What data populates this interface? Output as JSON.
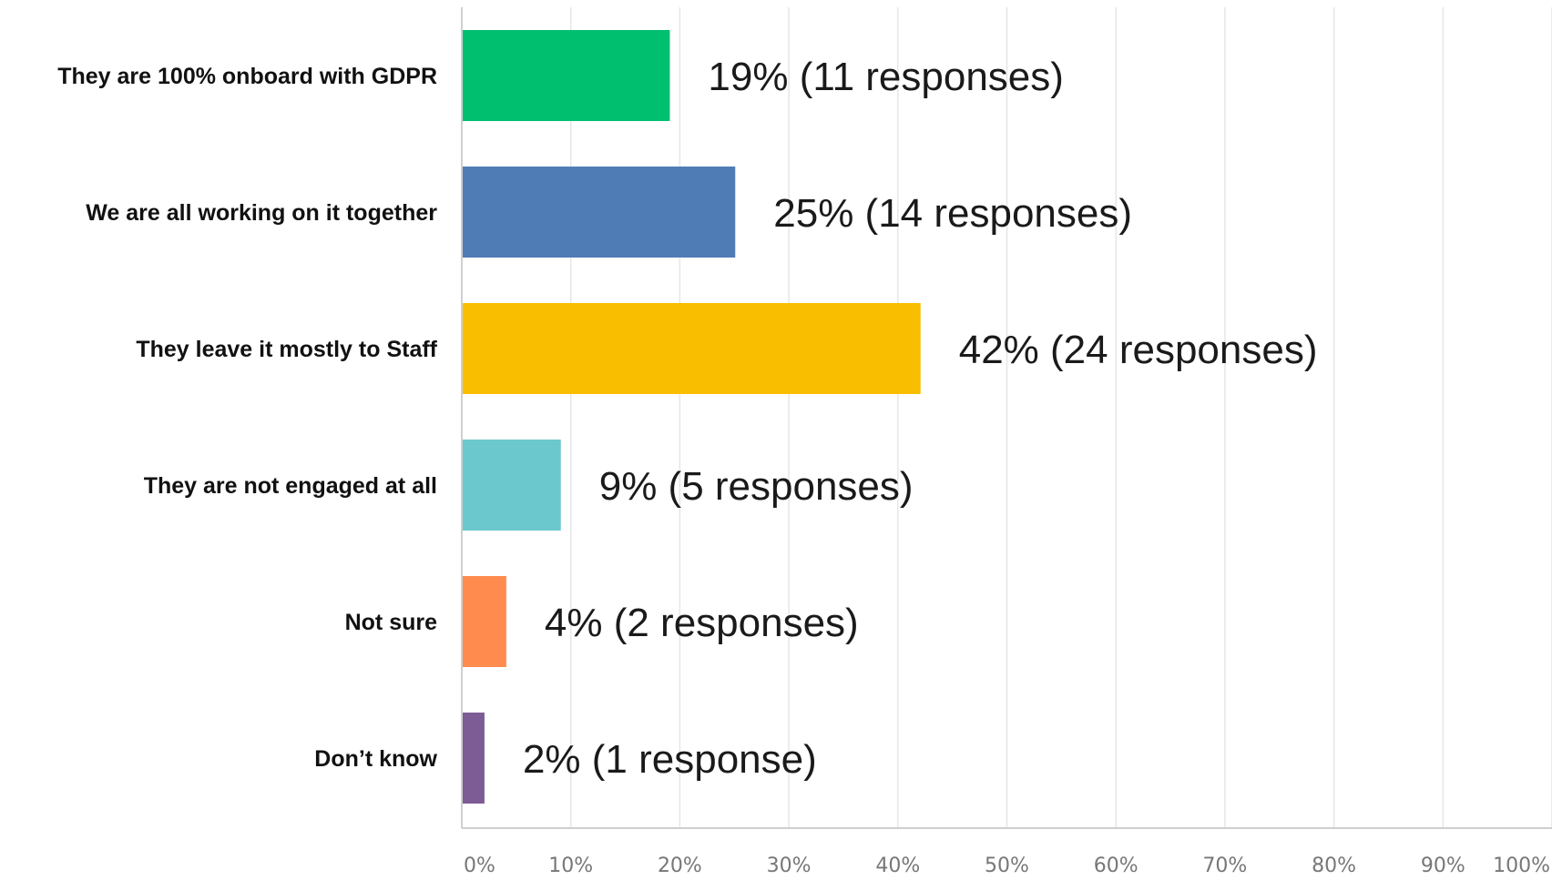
{
  "chart_data": {
    "type": "bar",
    "orientation": "horizontal",
    "categories": [
      "They are 100% onboard with GDPR",
      "We are all working on it together",
      "They leave it mostly to Staff",
      "They are not engaged at all",
      "Not sure",
      "Don’t know"
    ],
    "values": [
      19,
      25,
      42,
      9,
      4,
      2
    ],
    "responses": [
      11,
      14,
      24,
      5,
      2,
      1
    ],
    "data_labels": [
      "19% (11 responses)",
      "25% (14 responses)",
      "42% (24 responses)",
      "9% (5 responses)",
      "4% (2 responses)",
      "2% (1 response)"
    ],
    "colors": [
      "#00BF6F",
      "#507CB6",
      "#F9BE00",
      "#6BC8CD",
      "#FF8B4F",
      "#7D5C96"
    ],
    "xlim": [
      0,
      100
    ],
    "xticks": [
      "0%",
      "10%",
      "20%",
      "30%",
      "40%",
      "50%",
      "60%",
      "70%",
      "80%",
      "90%",
      "100%"
    ],
    "grid": true,
    "legend": "none"
  }
}
